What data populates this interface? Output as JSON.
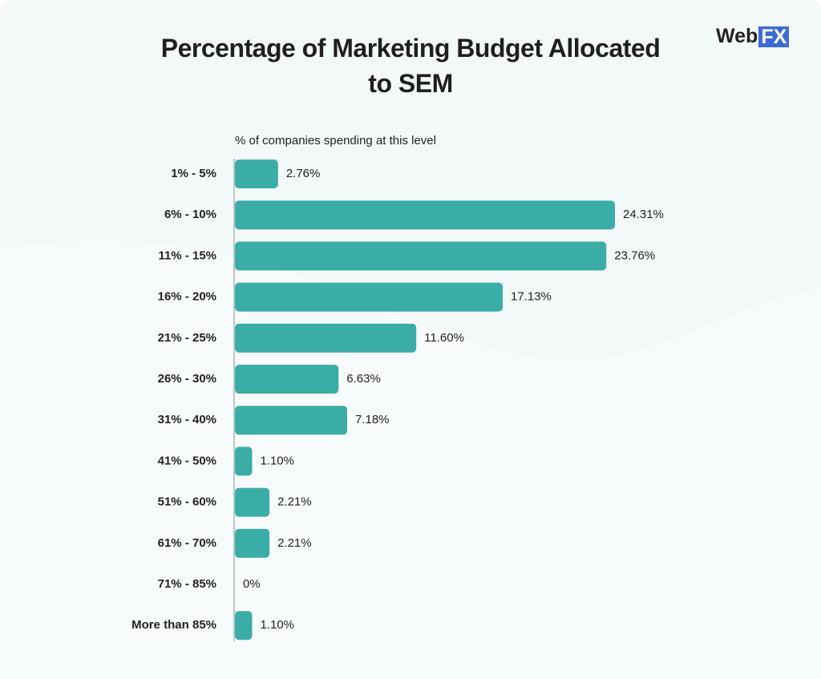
{
  "chart_data": {
    "type": "bar",
    "orientation": "horizontal",
    "title": "Percentage of Marketing Budget Allocated to SEM",
    "subtitle": "% of companies spending at this level",
    "brand": "Web",
    "brand_box": "FX",
    "categories": [
      "1% - 5%",
      "6% - 10%",
      "11% - 15%",
      "16% - 20%",
      "21% - 25%",
      "26% - 30%",
      "31% - 40%",
      "41% - 50%",
      "51% - 60%",
      "61% - 70%",
      "71% - 85%",
      "More than 85%"
    ],
    "values": [
      2.76,
      24.31,
      23.76,
      17.13,
      11.6,
      6.63,
      7.18,
      1.1,
      2.21,
      2.21,
      0,
      1.1
    ],
    "value_labels": [
      "2.76%",
      "24.31%",
      "23.76%",
      "17.13%",
      "11.60%",
      "6.63%",
      "7.18%",
      "1.10%",
      "2.21%",
      "2.21%",
      "0%",
      "1.10%"
    ],
    "color": "#3aada6"
  }
}
